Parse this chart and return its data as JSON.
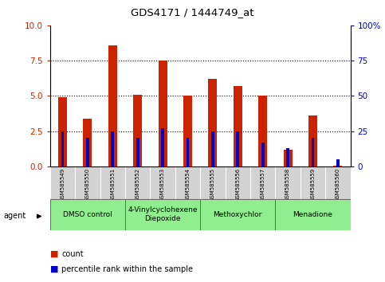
{
  "title": "GDS4171 / 1444749_at",
  "samples": [
    "GSM585549",
    "GSM585550",
    "GSM585551",
    "GSM585552",
    "GSM585553",
    "GSM585554",
    "GSM585555",
    "GSM585556",
    "GSM585557",
    "GSM585558",
    "GSM585559",
    "GSM585560"
  ],
  "count_values": [
    4.9,
    3.4,
    8.6,
    5.1,
    7.5,
    5.0,
    6.2,
    5.7,
    5.0,
    1.2,
    3.6,
    0.05
  ],
  "percentile_values": [
    25,
    20,
    25,
    20,
    27,
    20,
    25,
    25,
    17,
    13,
    20,
    5
  ],
  "ylim_left": [
    0,
    10
  ],
  "ylim_right": [
    0,
    100
  ],
  "yticks_left": [
    0,
    2.5,
    5.0,
    7.5,
    10
  ],
  "yticks_right": [
    0,
    25,
    50,
    75,
    100
  ],
  "bar_color": "#cc2200",
  "pct_color": "#0000cc",
  "agent_groups": [
    {
      "label": "DMSO control",
      "start": 0,
      "end": 2,
      "color": "#90ee90"
    },
    {
      "label": "4-Vinylcyclohexene\nDiepoxide",
      "start": 3,
      "end": 5,
      "color": "#90ee90"
    },
    {
      "label": "Methoxychlor",
      "start": 6,
      "end": 8,
      "color": "#90ee90"
    },
    {
      "label": "Menadione",
      "start": 9,
      "end": 11,
      "color": "#90ee90"
    }
  ],
  "legend_count_label": "count",
  "legend_pct_label": "percentile rank within the sample",
  "agent_label": "agent",
  "bar_width": 0.35,
  "pct_bar_width": 0.12
}
